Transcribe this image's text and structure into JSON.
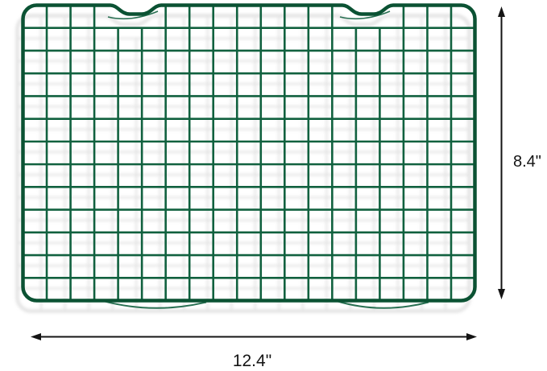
{
  "image": {
    "description": "Top view of a dark green coated steel wire cooling rack on a white background with size annotations",
    "background_color": "#ffffff"
  },
  "product": {
    "name": "wire cooling rack",
    "wire_color": "#11613f",
    "frame_color": "#0b5233",
    "shadow_color": "#c9c9c9",
    "grid_columns": 19,
    "grid_rows": 13,
    "width_inches": 12.4,
    "height_inches": 8.4
  },
  "annotations": {
    "color": "#141414",
    "width_label": "12.4\"",
    "height_label": "8.4\""
  }
}
